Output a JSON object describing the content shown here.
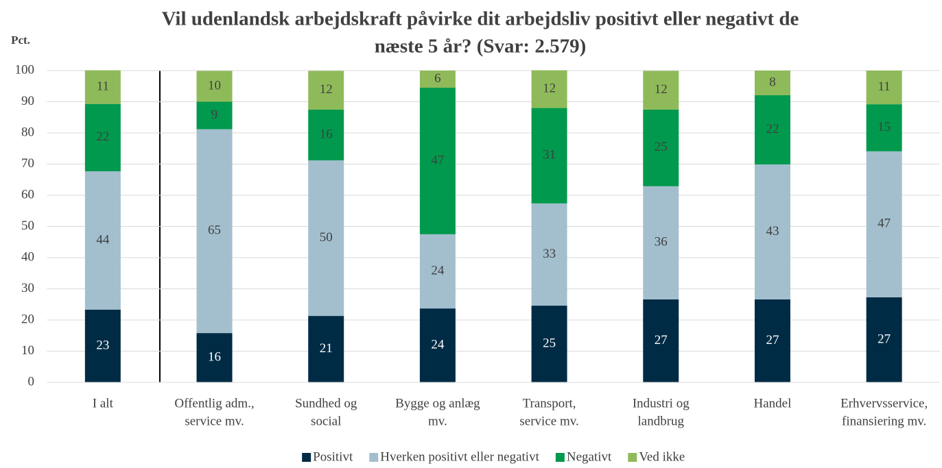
{
  "chart_data": {
    "type": "stacked_bar",
    "title": [
      "Vil udenlandsk arbejdskraft påvirke dit arbejdsliv positivt eller negativt de",
      "næste 5 år? (Svar: 2.579)"
    ],
    "y_label": "Pct.",
    "categories": [
      [
        "I alt"
      ],
      [
        "Offentlig adm.,",
        "service mv."
      ],
      [
        "Sundhed og",
        "social"
      ],
      [
        "Bygge og anlæg",
        "mv."
      ],
      [
        "Transport,",
        "service mv."
      ],
      [
        "Industri og",
        "landbrug"
      ],
      [
        "Handel"
      ],
      [
        "Erhvervsservice,",
        "finansiering mv."
      ]
    ],
    "series": [
      {
        "name": "Positivt",
        "color": "#002b45",
        "label_color": "#ffffff",
        "values": [
          23.3,
          15.8,
          21.3,
          23.7,
          24.6,
          26.6,
          26.6,
          27.3
        ],
        "value_labels": [
          "23",
          "16",
          "21",
          "24",
          "25",
          "27",
          "27",
          "27"
        ]
      },
      {
        "name": "Hverken positivt eller negativt",
        "color": "#a3bfce",
        "label_color": "#404040",
        "values": [
          44.4,
          65.4,
          49.9,
          23.8,
          32.8,
          36.3,
          43.3,
          46.8
        ],
        "value_labels": [
          "44",
          "65",
          "50",
          "24",
          "33",
          "36",
          "43",
          "47"
        ]
      },
      {
        "name": "Negativt",
        "color": "#00994d",
        "label_color": "#404040",
        "values": [
          21.6,
          8.8,
          16.3,
          47.0,
          30.6,
          24.6,
          22.2,
          15.1
        ],
        "value_labels": [
          "22",
          "9",
          "16",
          "47",
          "31",
          "25",
          "22",
          "15"
        ]
      },
      {
        "name": "Ved ikke",
        "color": "#8fba5a",
        "label_color": "#404040",
        "values": [
          10.8,
          9.9,
          12.4,
          5.5,
          12.1,
          12.4,
          7.9,
          10.8
        ],
        "value_labels": [
          "11",
          "10",
          "12",
          "6",
          "12",
          "12",
          "8",
          "11"
        ]
      }
    ],
    "ylim": [
      0,
      100
    ],
    "yticks": [
      0,
      10,
      20,
      30,
      40,
      50,
      60,
      70,
      80,
      90,
      100
    ],
    "grid": true,
    "legend": "bottom"
  }
}
